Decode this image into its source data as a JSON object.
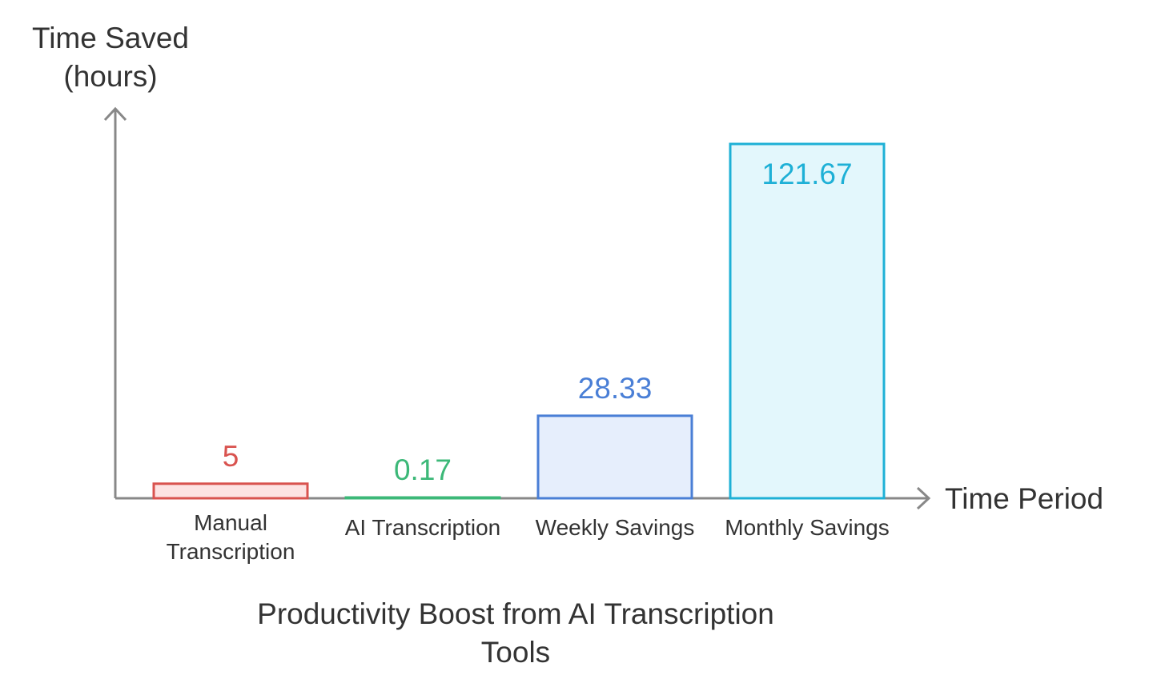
{
  "chart_data": {
    "type": "bar",
    "title": "Productivity Boost from AI Transcription Tools",
    "ylabel": "Time Saved (hours)",
    "xlabel": "Time Period",
    "categories": [
      "Manual Transcription",
      "AI Transcription",
      "Weekly Savings",
      "Monthly Savings"
    ],
    "values": [
      5,
      0.17,
      28.33,
      121.67
    ],
    "value_labels": [
      "5",
      "0.17",
      "28.33",
      "121.67"
    ],
    "ylim": [
      0,
      121.67
    ],
    "grid": false,
    "legend": "none",
    "colors": [
      {
        "stroke": "#d9534f",
        "fill": "#fde3e3"
      },
      {
        "stroke": "#3cb878",
        "fill": "#e4f7ec"
      },
      {
        "stroke": "#4a7fd6",
        "fill": "#e6eefc"
      },
      {
        "stroke": "#1eb0d6",
        "fill": "#e3f7fc"
      }
    ],
    "axis_color": "#888888"
  }
}
